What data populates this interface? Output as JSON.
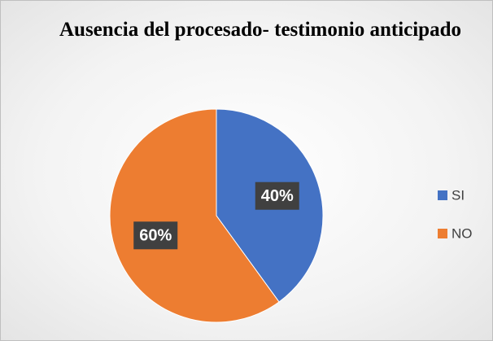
{
  "chart_data": {
    "type": "pie",
    "title": "Ausencia del procesado- testimonio anticipado",
    "categories": [
      "SI",
      "NO"
    ],
    "values": [
      40,
      60
    ],
    "value_labels": [
      "40%",
      "60%"
    ],
    "colors": [
      "#4472c4",
      "#ed7d31"
    ],
    "legend": "right"
  }
}
